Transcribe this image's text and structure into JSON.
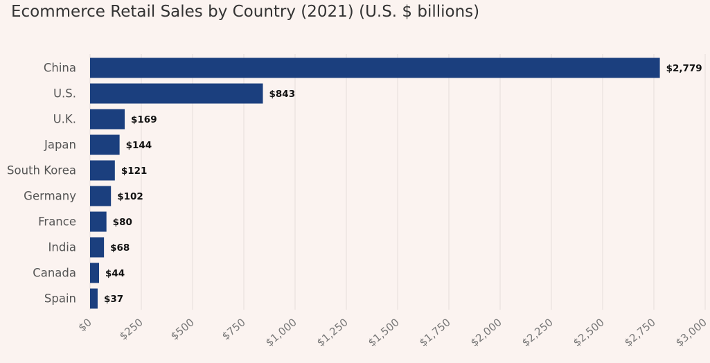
{
  "colors": {
    "background": "#fbf3f0",
    "bar": "#1b3f7e",
    "grid": "#e4dcda"
  },
  "chart_data": {
    "type": "bar",
    "orientation": "horizontal",
    "title": "Ecommerce Retail Sales by Country (2021) (U.S. $ billions)",
    "xlabel": "",
    "ylabel": "",
    "categories": [
      "China",
      "U.S.",
      "U.K.",
      "Japan",
      "South Korea",
      "Germany",
      "France",
      "India",
      "Canada",
      "Spain"
    ],
    "values": [
      2779,
      843,
      169,
      144,
      121,
      102,
      80,
      68,
      44,
      37
    ],
    "value_labels": [
      "$2,779",
      "$843",
      "$169",
      "$144",
      "$121",
      "$102",
      "$80",
      "$68",
      "$44",
      "$37"
    ],
    "xlim": [
      0,
      3000
    ],
    "x_ticks": [
      0,
      250,
      500,
      750,
      1000,
      1250,
      1500,
      1750,
      2000,
      2250,
      2500,
      2750,
      3000
    ],
    "x_tick_labels": [
      "$0",
      "$250",
      "$500",
      "$750",
      "$1,000",
      "$1,250",
      "$1,500",
      "$1,750",
      "$2,000",
      "$2,250",
      "$2,500",
      "$2,750",
      "$3,000"
    ],
    "grid": true,
    "legend": "none"
  }
}
